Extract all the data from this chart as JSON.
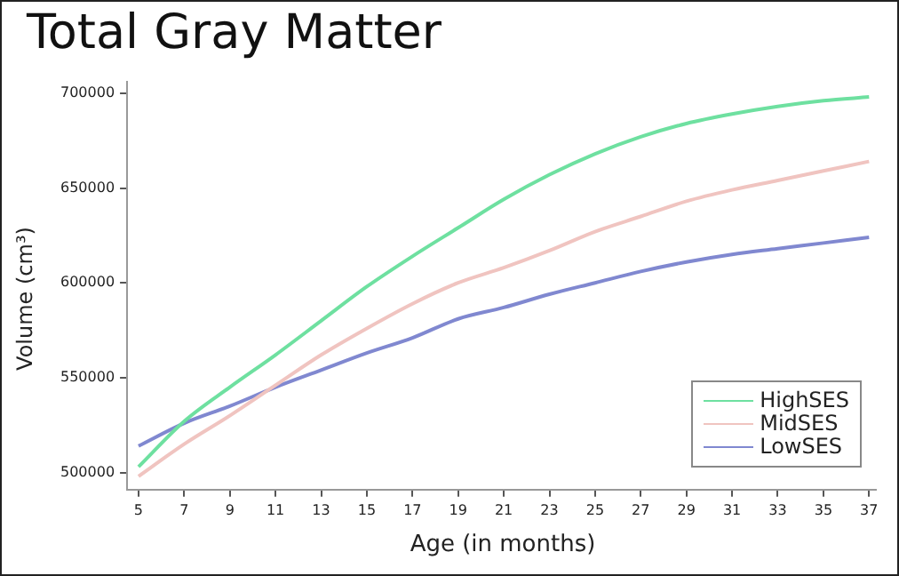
{
  "chart_data": {
    "type": "line",
    "title": "Total Gray Matter",
    "xlabel": "Age (in months)",
    "ylabel": "Volume (cm³)",
    "x": [
      5,
      7,
      9,
      11,
      13,
      15,
      17,
      19,
      21,
      23,
      25,
      27,
      29,
      31,
      33,
      35,
      37
    ],
    "series": [
      {
        "name": "HighSES",
        "color": "#6ee0a0",
        "values": [
          503000,
          527000,
          545000,
          562000,
          580000,
          598000,
          614000,
          629000,
          644000,
          657000,
          668000,
          677000,
          684000,
          689000,
          693000,
          696000,
          698000
        ]
      },
      {
        "name": "MidSES",
        "color": "#f0c4c0",
        "values": [
          498000,
          515000,
          530000,
          546000,
          562000,
          576000,
          589000,
          600000,
          608000,
          617000,
          627000,
          635000,
          643000,
          649000,
          654000,
          659000,
          664000
        ]
      },
      {
        "name": "LowSES",
        "color": "#8088d0",
        "values": [
          514000,
          526000,
          535000,
          545000,
          554000,
          563000,
          571000,
          581000,
          587000,
          594000,
          600000,
          606000,
          611000,
          615000,
          618000,
          621000,
          624000
        ]
      }
    ],
    "xlim": [
      4.5,
      37.3
    ],
    "xticks": [
      5,
      7,
      9,
      11,
      13,
      15,
      17,
      19,
      21,
      23,
      25,
      27,
      29,
      31,
      33,
      35,
      37
    ],
    "ylim": [
      491000,
      706000
    ],
    "yticks": [
      500000,
      550000,
      600000,
      650000,
      700000
    ],
    "grid": false,
    "legend": "bottom right",
    "marker": "none",
    "line_style": "solid"
  }
}
